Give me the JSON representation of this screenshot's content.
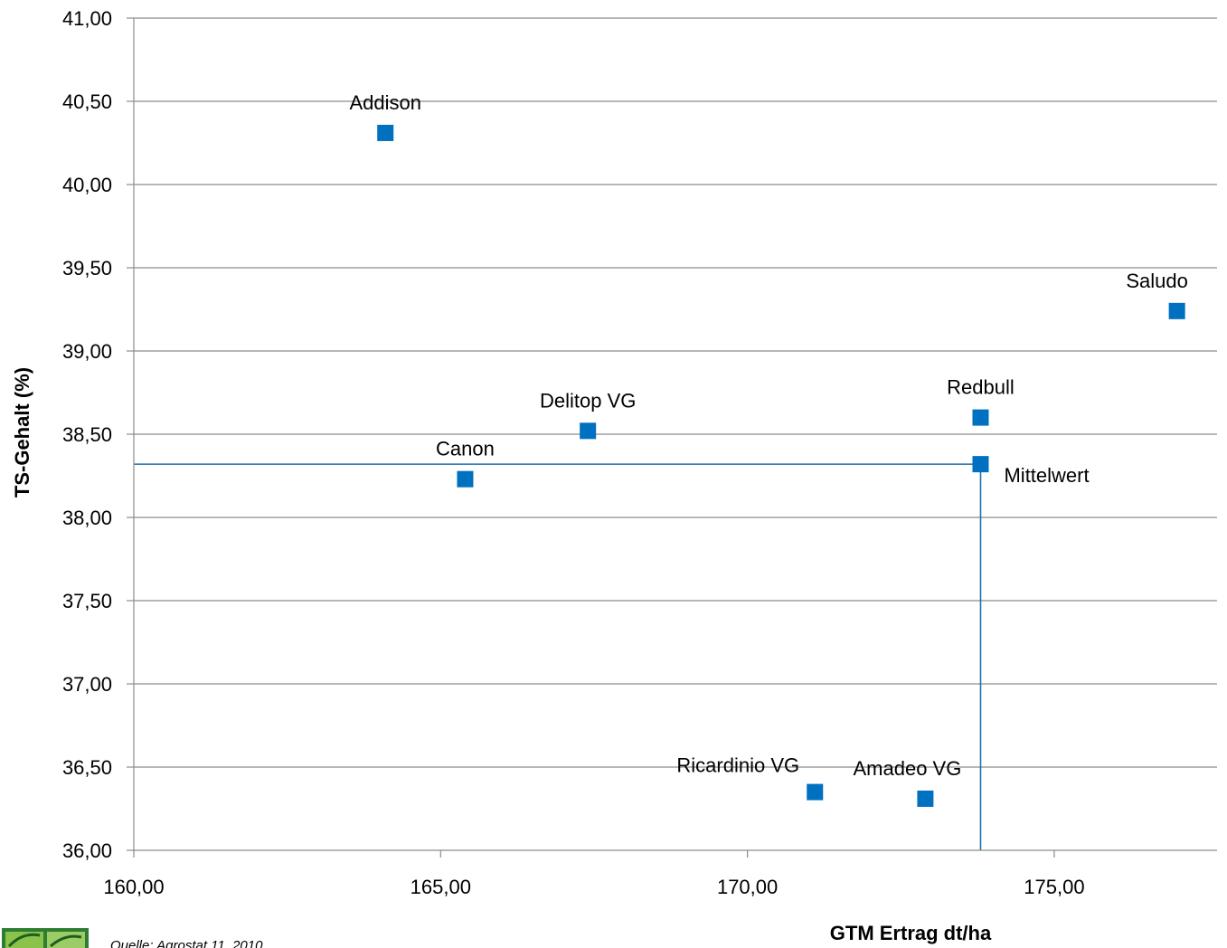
{
  "chart_data": {
    "type": "scatter",
    "title": "",
    "xlabel": "GTM Ertrag dt/ha",
    "ylabel": "TS-Gehalt (%)",
    "xlim": [
      160,
      177.3
    ],
    "ylim": [
      36,
      41
    ],
    "x_ticks": [
      160,
      165,
      170,
      175
    ],
    "x_tick_labels": [
      "160,00",
      "165,00",
      "170,00",
      "175,00"
    ],
    "y_ticks": [
      36,
      36.5,
      37,
      37.5,
      38,
      38.5,
      39,
      39.5,
      40,
      40.5,
      41
    ],
    "y_tick_labels": [
      "36,00",
      "36,50",
      "37,00",
      "37,50",
      "38,00",
      "38,50",
      "39,00",
      "39,50",
      "40,00",
      "40,50",
      "41,00"
    ],
    "grid": "horizontal",
    "marker_color": "#0070C0",
    "line_color": "#1F6FA8",
    "points": [
      {
        "label": "Addison",
        "x": 164.1,
        "y": 40.31
      },
      {
        "label": "Saludo",
        "x": 177.0,
        "y": 39.24
      },
      {
        "label": "Redbull",
        "x": 173.8,
        "y": 38.6
      },
      {
        "label": "Delitop VG",
        "x": 167.4,
        "y": 38.52
      },
      {
        "label": "Canon",
        "x": 165.4,
        "y": 38.23
      },
      {
        "label": "Mittelwert",
        "x": 173.8,
        "y": 38.32
      },
      {
        "label": "Ricardinio VG",
        "x": 171.1,
        "y": 36.35
      },
      {
        "label": "Amadeo VG",
        "x": 172.9,
        "y": 36.31
      }
    ],
    "mean_lines": {
      "x": 173.8,
      "y": 38.32
    }
  },
  "source_note": "Quelle: Agrostat 11, 2010",
  "logo_icon": "seed-company-logo-icon"
}
